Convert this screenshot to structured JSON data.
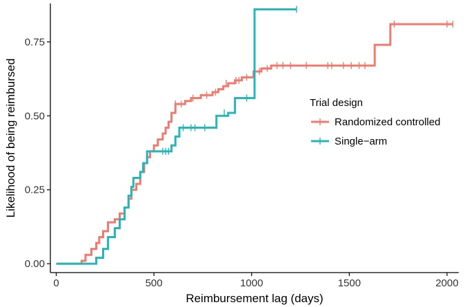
{
  "chart_data": {
    "type": "line",
    "subtype": "step",
    "title": "",
    "xlabel": "Reimbursement lag (days)",
    "ylabel": "Likelihood of being reimbursed",
    "xlim": [
      -30,
      2060
    ],
    "ylim": [
      -0.03,
      0.88
    ],
    "x_ticks": [
      0,
      500,
      1000,
      1500,
      2000
    ],
    "x_tick_labels": [
      "0",
      "500",
      "1000",
      "1500",
      "2000"
    ],
    "y_ticks": [
      0,
      0.25,
      0.5,
      0.75
    ],
    "y_tick_labels": [
      "0.00",
      "0.25",
      "0.50",
      "0.75"
    ],
    "grid": false,
    "legend": {
      "title": "Trial design",
      "placement": "right",
      "entries": [
        "Randomized controlled",
        "Single−arm"
      ]
    },
    "series": [
      {
        "name": "Randomized controlled",
        "color": "#F07A6E",
        "steps": [
          [
            0,
            0.0
          ],
          [
            130,
            0.01
          ],
          [
            150,
            0.03
          ],
          [
            180,
            0.05
          ],
          [
            205,
            0.07
          ],
          [
            220,
            0.09
          ],
          [
            240,
            0.11
          ],
          [
            265,
            0.14
          ],
          [
            300,
            0.15
          ],
          [
            325,
            0.17
          ],
          [
            350,
            0.19
          ],
          [
            370,
            0.22
          ],
          [
            385,
            0.25
          ],
          [
            410,
            0.27
          ],
          [
            430,
            0.31
          ],
          [
            450,
            0.34
          ],
          [
            465,
            0.36
          ],
          [
            480,
            0.38
          ],
          [
            500,
            0.4
          ],
          [
            520,
            0.42
          ],
          [
            545,
            0.44
          ],
          [
            560,
            0.46
          ],
          [
            575,
            0.48
          ],
          [
            590,
            0.51
          ],
          [
            610,
            0.54
          ],
          [
            660,
            0.55
          ],
          [
            690,
            0.56
          ],
          [
            740,
            0.57
          ],
          [
            800,
            0.58
          ],
          [
            830,
            0.59
          ],
          [
            855,
            0.6
          ],
          [
            880,
            0.61
          ],
          [
            915,
            0.62
          ],
          [
            950,
            0.63
          ],
          [
            1010,
            0.65
          ],
          [
            1050,
            0.66
          ],
          [
            1100,
            0.67
          ],
          [
            1630,
            0.74
          ],
          [
            1710,
            0.81
          ],
          [
            2030,
            0.81
          ]
        ],
        "censor_marks": [
          [
            610,
            0.54
          ],
          [
            640,
            0.54
          ],
          [
            700,
            0.56
          ],
          [
            770,
            0.57
          ],
          [
            815,
            0.58
          ],
          [
            870,
            0.61
          ],
          [
            920,
            0.62
          ],
          [
            935,
            0.62
          ],
          [
            975,
            0.63
          ],
          [
            1040,
            0.65
          ],
          [
            1080,
            0.66
          ],
          [
            1130,
            0.67
          ],
          [
            1160,
            0.67
          ],
          [
            1200,
            0.67
          ],
          [
            1280,
            0.67
          ],
          [
            1390,
            0.67
          ],
          [
            1410,
            0.67
          ],
          [
            1470,
            0.67
          ],
          [
            1510,
            0.67
          ],
          [
            1550,
            0.67
          ],
          [
            1580,
            0.67
          ],
          [
            1730,
            0.81
          ],
          [
            2000,
            0.81
          ],
          [
            2030,
            0.81
          ]
        ]
      },
      {
        "name": "Single−arm",
        "color": "#26B5B8",
        "steps": [
          [
            0,
            0.0
          ],
          [
            205,
            0.02
          ],
          [
            240,
            0.05
          ],
          [
            265,
            0.09
          ],
          [
            300,
            0.12
          ],
          [
            325,
            0.15
          ],
          [
            350,
            0.19
          ],
          [
            370,
            0.23
          ],
          [
            385,
            0.26
          ],
          [
            395,
            0.29
          ],
          [
            430,
            0.31
          ],
          [
            445,
            0.34
          ],
          [
            465,
            0.38
          ],
          [
            590,
            0.4
          ],
          [
            610,
            0.43
          ],
          [
            630,
            0.46
          ],
          [
            820,
            0.5
          ],
          [
            880,
            0.51
          ],
          [
            915,
            0.56
          ],
          [
            1015,
            0.86
          ],
          [
            1230,
            0.86
          ]
        ],
        "censor_marks": [
          [
            545,
            0.38
          ],
          [
            560,
            0.38
          ],
          [
            575,
            0.38
          ],
          [
            650,
            0.46
          ],
          [
            690,
            0.46
          ],
          [
            710,
            0.46
          ],
          [
            760,
            0.46
          ],
          [
            860,
            0.51
          ],
          [
            975,
            0.56
          ],
          [
            1230,
            0.86
          ]
        ]
      }
    ]
  }
}
